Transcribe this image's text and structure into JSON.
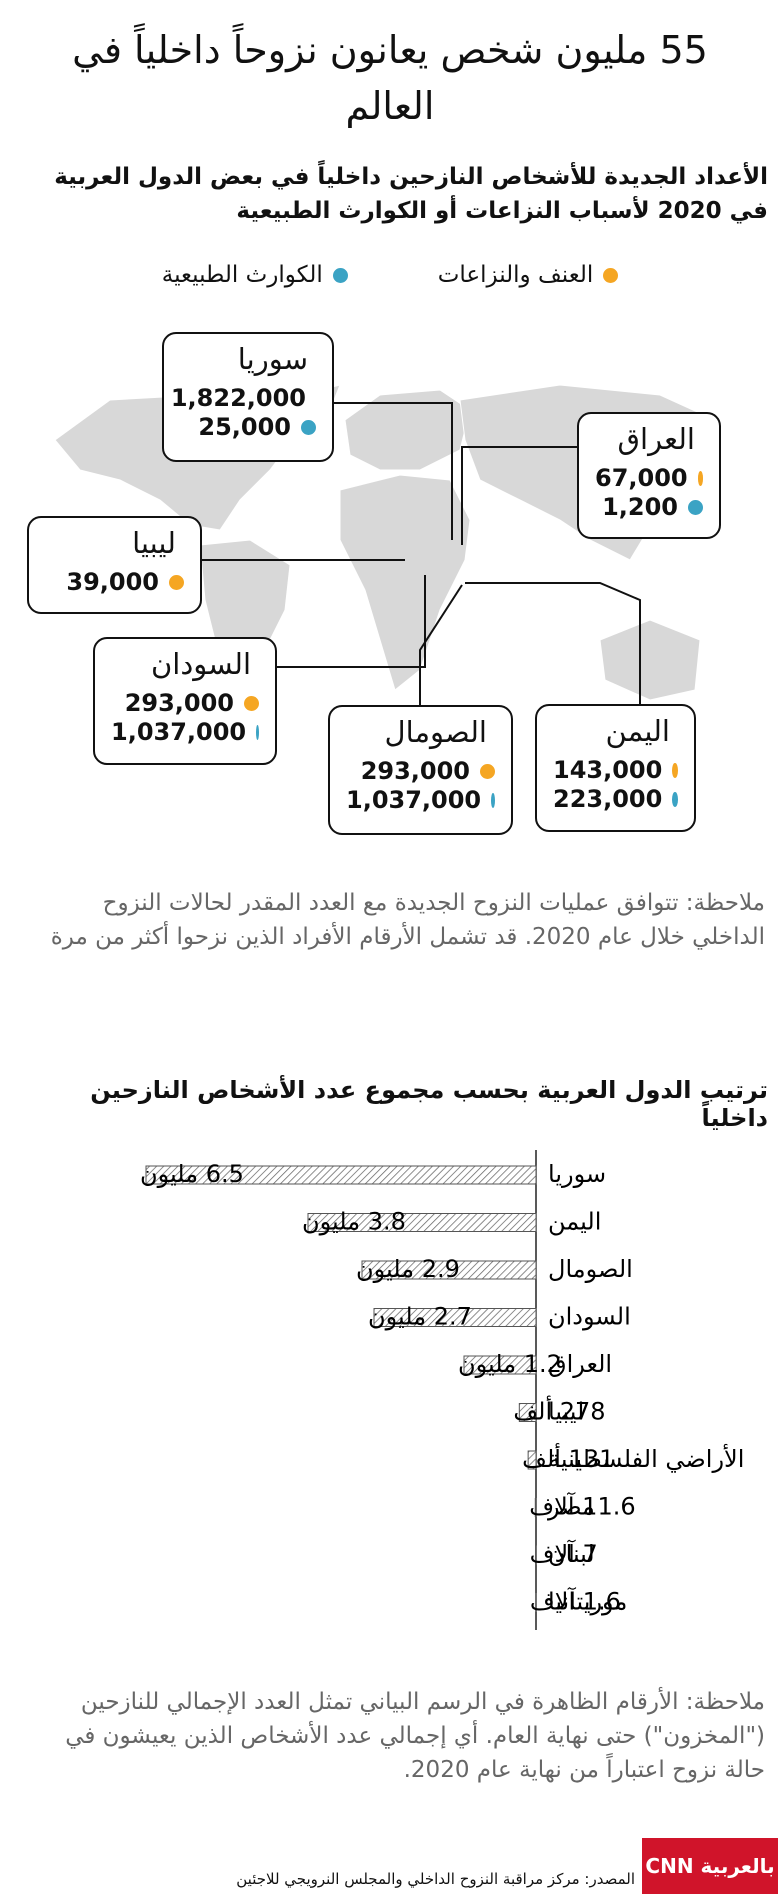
{
  "header": {
    "title": "55 مليون شخص يعانون نزوحاً داخلياً في العالم",
    "subtitle": "الأعداد الجديدة للأشخاص النازحين داخلياً في بعض الدول العربية في 2020 لأسباب النزاعات أو الكوارث الطبيعية"
  },
  "legend": [
    {
      "label": "العنف والنزاعات",
      "color": "#f5a623"
    },
    {
      "label": "الكوارث الطبيعية",
      "color": "#3ba3c4"
    }
  ],
  "map_callouts": [
    {
      "name": "سوريا",
      "conflict": "1,822,000",
      "disaster": "25,000"
    },
    {
      "name": "العراق",
      "conflict": "67,000",
      "disaster": "1,200"
    },
    {
      "name": "ليبيا",
      "conflict": "39,000"
    },
    {
      "name": "السودان",
      "conflict": "293,000",
      "disaster": "1,037,000"
    },
    {
      "name": "الصومال",
      "conflict": "293,000",
      "disaster": "1,037,000"
    },
    {
      "name": "اليمن",
      "conflict": "143,000",
      "disaster": "223,000"
    }
  ],
  "note1": "ملاحظة: تتوافق عمليات النزوح الجديدة مع العدد المقدر لحالات النزوح الداخلي خلال عام 2020. قد تشمل الأرقام الأفراد الذين نزحوا أكثر من مرة",
  "chart_data": {
    "type": "bar",
    "orientation": "horizontal",
    "title": "ترتيب الدول العربية بحسب مجموع عدد الأشخاص النازحين داخلياً",
    "categories": [
      "سوريا",
      "اليمن",
      "الصومال",
      "السودان",
      "العراق",
      "ليبيا",
      "الأراضي الفلسطينية",
      "مصر",
      "لبنان",
      "موريتانيا"
    ],
    "values": [
      6500000,
      3800000,
      2900000,
      2700000,
      1200000,
      278000,
      131000,
      11600,
      7000,
      1600
    ],
    "value_labels": [
      "6.5 مليون",
      "3.8 مليون",
      "2.9 مليون",
      "2.7 مليون",
      "1.2 مليون",
      "278 ألف",
      "131 ألف",
      "11.6 آلاف",
      "7 آلاف",
      "1.6 آلاف"
    ],
    "color": "#555555"
  },
  "note2": "ملاحظة: الأرقام الظاهرة في الرسم البياني تمثل العدد الإجمالي للنازحين (\"المخزون\") حتى نهاية العام. أي إجمالي عدد الأشخاص الذين يعيشون في حالة نزوح اعتباراً من نهاية عام 2020.",
  "source": "المصدر: مركز مراقبة النزوح الداخلي والمجلس النرويجي للاجئين",
  "logo": "CNN بالعربية"
}
